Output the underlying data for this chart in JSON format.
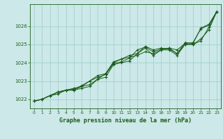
{
  "title": "Graphe pression niveau de la mer (hPa)",
  "background_color": "#cce8e8",
  "grid_color": "#99cccc",
  "line_color": "#1a5c1a",
  "marker_color": "#1a5c1a",
  "xlim": [
    -0.5,
    23.5
  ],
  "ylim": [
    1021.5,
    1027.2
  ],
  "yticks": [
    1022,
    1023,
    1024,
    1025,
    1026
  ],
  "xticks": [
    0,
    1,
    2,
    3,
    4,
    5,
    6,
    7,
    8,
    9,
    10,
    11,
    12,
    13,
    14,
    15,
    16,
    17,
    18,
    19,
    20,
    21,
    22,
    23
  ],
  "series": [
    [
      1021.9,
      1022.0,
      1022.2,
      1022.4,
      1022.5,
      1022.5,
      1022.6,
      1022.7,
      1023.1,
      1023.2,
      1023.9,
      1024.0,
      1024.1,
      1024.5,
      1024.8,
      1024.4,
      1024.7,
      1024.7,
      1024.4,
      1025.0,
      1025.0,
      1025.2,
      1025.95,
      1026.8
    ],
    [
      1021.9,
      1022.0,
      1022.2,
      1022.3,
      1022.5,
      1022.5,
      1022.7,
      1023.0,
      1023.2,
      1023.35,
      1023.95,
      1024.05,
      1024.25,
      1024.7,
      1024.85,
      1024.6,
      1024.75,
      1024.8,
      1024.7,
      1025.05,
      1025.1,
      1025.85,
      1026.05,
      1026.8
    ],
    [
      1021.9,
      1022.0,
      1022.2,
      1022.3,
      1022.5,
      1022.55,
      1022.75,
      1023.0,
      1023.3,
      1023.4,
      1024.05,
      1024.2,
      1024.4,
      1024.5,
      1024.9,
      1024.7,
      1024.8,
      1024.75,
      1024.5,
      1025.1,
      1025.05,
      1025.9,
      1026.1,
      1026.8
    ],
    [
      1021.9,
      1022.0,
      1022.2,
      1022.4,
      1022.5,
      1022.6,
      1022.7,
      1022.8,
      1023.1,
      1023.4,
      1024.0,
      1024.2,
      1024.3,
      1024.4,
      1024.6,
      1024.5,
      1024.7,
      1024.8,
      1024.5,
      1025.0,
      1025.0,
      1025.3,
      1025.8,
      1026.8
    ]
  ]
}
